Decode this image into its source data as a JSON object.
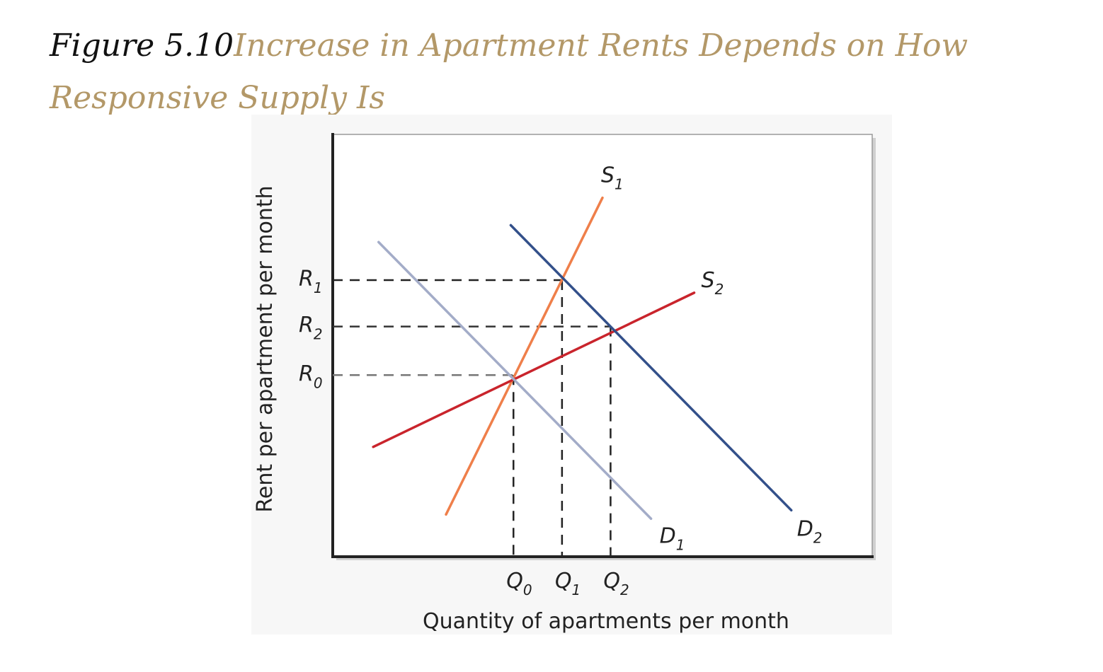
{
  "caption": {
    "figure_label": "Figure 5.10",
    "title": "Increase in Apartment Rents Depends on How Responsive Supply Is"
  },
  "chart_data": {
    "type": "line",
    "xlabel": "Quantity of apartments per month",
    "ylabel": "Rent per apartment per month",
    "xlim": [
      0,
      10
    ],
    "ylim": [
      0,
      10
    ],
    "grid": false,
    "legend": "none",
    "x_ticks": [
      {
        "main": "Q",
        "sub": "0",
        "value": 3.35
      },
      {
        "main": "Q",
        "sub": "1",
        "value": 4.25
      },
      {
        "main": "Q",
        "sub": "2",
        "value": 5.15
      }
    ],
    "y_ticks": [
      {
        "main": "R",
        "sub": "1",
        "value": 6.55
      },
      {
        "main": "R",
        "sub": "2",
        "value": 5.45
      },
      {
        "main": "R",
        "sub": "0",
        "value": 4.3
      }
    ],
    "series": [
      {
        "main": "S",
        "sub": "1",
        "color": "#ef7f4a",
        "points": [
          [
            2.1,
            1.0
          ],
          [
            5.0,
            8.5
          ]
        ]
      },
      {
        "main": "S",
        "sub": "2",
        "color": "#c9242c",
        "points": [
          [
            0.75,
            2.6
          ],
          [
            6.7,
            6.25
          ]
        ]
      },
      {
        "main": "D",
        "sub": "1",
        "color": "#a3acc8",
        "points": [
          [
            0.85,
            7.45
          ],
          [
            5.9,
            0.9
          ]
        ]
      },
      {
        "main": "D",
        "sub": "2",
        "color": "#33508a",
        "points": [
          [
            3.3,
            7.85
          ],
          [
            8.5,
            1.1
          ]
        ]
      }
    ],
    "guides": [
      {
        "from": [
          0,
          6.55
        ],
        "to": [
          4.25,
          6.55
        ],
        "color": "#222222"
      },
      {
        "from": [
          0,
          5.45
        ],
        "to": [
          5.15,
          5.45
        ],
        "color": "#333333"
      },
      {
        "from": [
          0,
          4.3
        ],
        "to": [
          3.35,
          4.3
        ],
        "color": "#777777"
      },
      {
        "from": [
          3.35,
          4.3
        ],
        "to": [
          3.35,
          0
        ],
        "color": "#222222"
      },
      {
        "from": [
          4.25,
          6.55
        ],
        "to": [
          4.25,
          0
        ],
        "color": "#222222"
      },
      {
        "from": [
          5.15,
          5.45
        ],
        "to": [
          5.15,
          0
        ],
        "color": "#222222"
      }
    ]
  }
}
